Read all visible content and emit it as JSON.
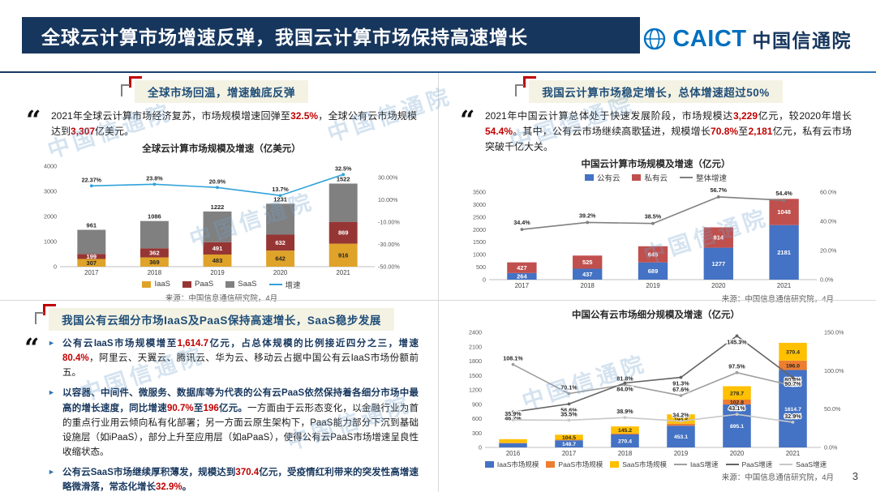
{
  "header": {
    "title": "全球云计算市场增速反弹，我国云计算市场保持高速增长",
    "logo_abbr": "CAICT",
    "logo_name": "中国信通院"
  },
  "page_number": "3",
  "watermark": {
    "text": "中国信通院"
  },
  "quote_mark": "“",
  "q1": {
    "badge": "全球市场回温，增速触底反弹",
    "para": [
      {
        "t": "2021年全球云计算市场经济复苏，市场规模增速回弹至"
      },
      {
        "t": "32.5%",
        "hl": 1
      },
      {
        "t": "，全球公有云市场规模达到"
      },
      {
        "t": "3,307",
        "hl": 1
      },
      {
        "t": "亿美元。"
      }
    ]
  },
  "q2": {
    "badge": "我国云计算市场稳定增长，总体增速超过50%",
    "para": [
      {
        "t": "2021年中国云计算总体处于快速发展阶段，市场规模达"
      },
      {
        "t": "3,229",
        "hl": 1
      },
      {
        "t": "亿元，较2020年增长"
      },
      {
        "t": "54.4%",
        "hl": 1
      },
      {
        "t": "。其中，公有云市场继续高歌猛进，规模增长"
      },
      {
        "t": "70.8%",
        "hl": 1
      },
      {
        "t": "至"
      },
      {
        "t": "2,181",
        "hl": 1
      },
      {
        "t": "亿元，私有云市场突破千亿大关。"
      }
    ]
  },
  "q3": {
    "badge": "我国公有云细分市场IaaS及PaaS保持高速增长，SaaS稳步发展",
    "bullet_icon": "►",
    "bullets": [
      [
        {
          "t": "公有云IaaS市场规模增至",
          "b": 1
        },
        {
          "t": "1,614.7",
          "hl": 1
        },
        {
          "t": "亿元，占总体规模的比例接近四分之三，增速",
          "b": 1
        },
        {
          "t": "80.4%",
          "hl": 1
        },
        {
          "t": "，阿里云、天翼云、腾讯云、华为云、移动云占据中国公有云IaaS市场份额前五。"
        }
      ],
      [
        {
          "t": "以容器、中间件、微服务、数据库等为代表的公有云PaaS依然保持着各细分市场中最高的增长速度，同比增速",
          "b": 1
        },
        {
          "t": "90.7%",
          "hl": 1
        },
        {
          "t": "至",
          "b": 1
        },
        {
          "t": "196",
          "hl": 1
        },
        {
          "t": "亿元。",
          "b": 1
        },
        {
          "t": "一方面由于云形态变化，以金融行业为首的重点行业用云倾向私有化部署；另一方面云原生架构下，PaaS能力部分下沉到基础设施层（如iPaaS），部分上升至应用层（如aPaaS），使得公有云PaaS市场增速呈良性收缩状态。"
        }
      ],
      [
        {
          "t": "公有云SaaS市场继续厚积薄发，规模达到",
          "b": 1
        },
        {
          "t": "370.4",
          "hl": 1
        },
        {
          "t": "亿元，受疫情红利带来的突发性高增速略微滑落，常态化增长",
          "b": 1
        },
        {
          "t": "32.9%",
          "hl": 1
        },
        {
          "t": "。",
          "b": 1
        }
      ]
    ]
  },
  "chart_data": [
    {
      "type": "bar+line",
      "title": "全球云计算市场规模及增速（亿美元）",
      "categories": [
        "2017",
        "2018",
        "2019",
        "2020",
        "2021"
      ],
      "stacks": [
        {
          "name": "IaaS",
          "color": "#DFA32A",
          "values": [
            307,
            369,
            483,
            642,
            916
          ]
        },
        {
          "name": "PaaS",
          "color": "#963634",
          "values": [
            199,
            362,
            491,
            632,
            869
          ]
        },
        {
          "name": "SaaS",
          "color": "#808080",
          "values": [
            961,
            1086,
            1222,
            1231,
            1522
          ]
        }
      ],
      "lines": [
        {
          "name": "增速",
          "color": "#31A2DB",
          "values": [
            22.37,
            23.8,
            20.9,
            13.7,
            32.5
          ],
          "labels": [
            "22.37%",
            "23.8%",
            "20.9%",
            "13.7%",
            "32.5%"
          ]
        }
      ],
      "left_axis": {
        "min": 0,
        "max": 4000,
        "step": 1000
      },
      "right_axis": {
        "min": -50,
        "max": 40,
        "step": 20,
        "decimals": 2
      },
      "legend_position": "bottom",
      "source": "来源：中国信息通信研究院，4月"
    },
    {
      "type": "bar+line",
      "title": "中国云计算市场规模及增速（亿元）",
      "categories": [
        "2017",
        "2018",
        "2019",
        "2020",
        "2021"
      ],
      "stacks": [
        {
          "name": "公有云",
          "color": "#4472C4",
          "values": [
            264,
            437,
            689,
            1277,
            2181
          ]
        },
        {
          "name": "私有云",
          "color": "#C0504D",
          "values": [
            427,
            525,
            645,
            814,
            1048
          ]
        }
      ],
      "lines": [
        {
          "name": "整体增速",
          "color": "#808080",
          "values": [
            34.4,
            39.2,
            38.5,
            56.7,
            54.4
          ],
          "labels": [
            "34.4%",
            "39.2%",
            "38.5%",
            "56.7%",
            "54.4%"
          ]
        }
      ],
      "left_axis": {
        "min": 0,
        "max": 3500,
        "step": 500
      },
      "right_axis": {
        "min": 0,
        "max": 60,
        "step": 20,
        "decimals": 1
      },
      "legend_position": "top",
      "source": "来源：中国信息通信研究院，4月"
    },
    {
      "type": "bar+line",
      "title": "中国公有云市场细分规模及增速（亿元）",
      "categories": [
        "2016",
        "2017",
        "2018",
        "2019",
        "2020",
        "2021"
      ],
      "stacks": [
        {
          "name": "IaaS市场规模",
          "color": "#4472C4",
          "values": [
            87.4,
            148.7,
            270.4,
            453.1,
            895.1,
            1614.7
          ]
        },
        {
          "name": "PaaS市场规模",
          "color": "#ED7D31",
          "values": [
            7.6,
            11.9,
            21.9,
            41.9,
            102.8,
            196.0
          ]
        },
        {
          "name": "SaaS市场规模",
          "color": "#FFC000",
          "values": [
            77.1,
            104.5,
            145.2,
            194.8,
            278.7,
            370.4
          ]
        }
      ],
      "lines": [
        {
          "name": "IaaS增速",
          "color": "#9E9E9E",
          "values": [
            108.1,
            70.1,
            81.8,
            67.6,
            97.5,
            80.4
          ],
          "labels": [
            "108.1%",
            "70.1%",
            "81.8%",
            "67.6%",
            "97.5%",
            "80.4%"
          ]
        },
        {
          "name": "PaaS增速",
          "color": "#636363",
          "values": [
            46.2,
            56.6,
            84.0,
            91.3,
            145.3,
            90.7
          ],
          "labels": [
            "46.2%",
            "56.6%",
            "84.0%",
            "91.3%",
            "145.3%",
            "90.7%"
          ]
        },
        {
          "name": "SaaS增速",
          "color": "#C8C8C8",
          "values": [
            35.9,
            35.5,
            38.9,
            34.2,
            43.1,
            32.9
          ],
          "labels": [
            "35.9%",
            "35.5%",
            "38.9%",
            "34.2%",
            "43.1%",
            "32.9%"
          ]
        }
      ],
      "left_axis": {
        "min": 0,
        "max": 2400,
        "step": 300
      },
      "right_axis": {
        "min": 0,
        "max": 150,
        "step": 50,
        "decimals": 1
      },
      "legend_position": "bottom",
      "source": "来源：中国信息通信研究院，4月"
    }
  ]
}
